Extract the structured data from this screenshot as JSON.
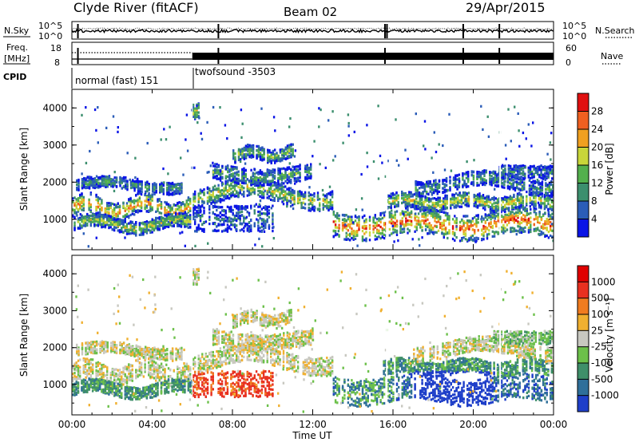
{
  "header": {
    "station": "Clyde River (fitACF)",
    "beam": "Beam 02",
    "date": "29/Apr/2015"
  },
  "strips": {
    "nsky_label": "N.Sky",
    "nsearch_label": "N.Search",
    "freq_label_1": "Freq.",
    "freq_label_2": "[MHz]",
    "nave_label": "Nave",
    "cpid_label": "CPID",
    "left_top_tick": "10^5",
    "left_bottom_tick": "10^0",
    "right_top_tick": "10^5",
    "right_bottom_tick": "10^0",
    "freq_ticks": [
      "18",
      "8"
    ],
    "nave_ticks": [
      "60",
      "0"
    ],
    "cpid_1": "normal (fast) 151",
    "cpid_2": "twofsound -3503"
  },
  "chart_data": [
    {
      "type": "heatmap",
      "panel": "power",
      "ylabel": "Slant Range [km]",
      "xlabel": "",
      "yticks": [
        1000,
        2000,
        3000,
        4000
      ],
      "ylim": [
        180,
        4500
      ],
      "colorbar_label": "Power [dB]",
      "colorbar_ticks": [
        "28",
        "24",
        "20",
        "16",
        "12",
        "8",
        "4"
      ],
      "colors": [
        "#0a14e6",
        "#2b5db8",
        "#3c8f6e",
        "#53b04d",
        "#c8d63a",
        "#f0a020",
        "#f06020",
        "#e01010"
      ]
    },
    {
      "type": "heatmap",
      "panel": "velocity",
      "ylabel": "Slant Range [km]",
      "xlabel": "Time UT",
      "yticks": [
        1000,
        2000,
        3000,
        4000
      ],
      "ylim": [
        180,
        4500
      ],
      "xticks": [
        "00:00",
        "04:00",
        "08:00",
        "12:00",
        "16:00",
        "20:00",
        "00:00"
      ],
      "xlim_hours": [
        0,
        24
      ],
      "colorbar_label": "Velocity [m s⁻¹]",
      "colorbar_ticks": [
        "1000",
        "500",
        "100",
        "25",
        "-25",
        "-100",
        "-500",
        "-1000"
      ],
      "colors": [
        "#1f3fc9",
        "#2f6f9a",
        "#3f8f6a",
        "#6cc04a",
        "#c8c8c0",
        "#f0b030",
        "#f07c20",
        "#e83020",
        "#e00000"
      ]
    }
  ]
}
